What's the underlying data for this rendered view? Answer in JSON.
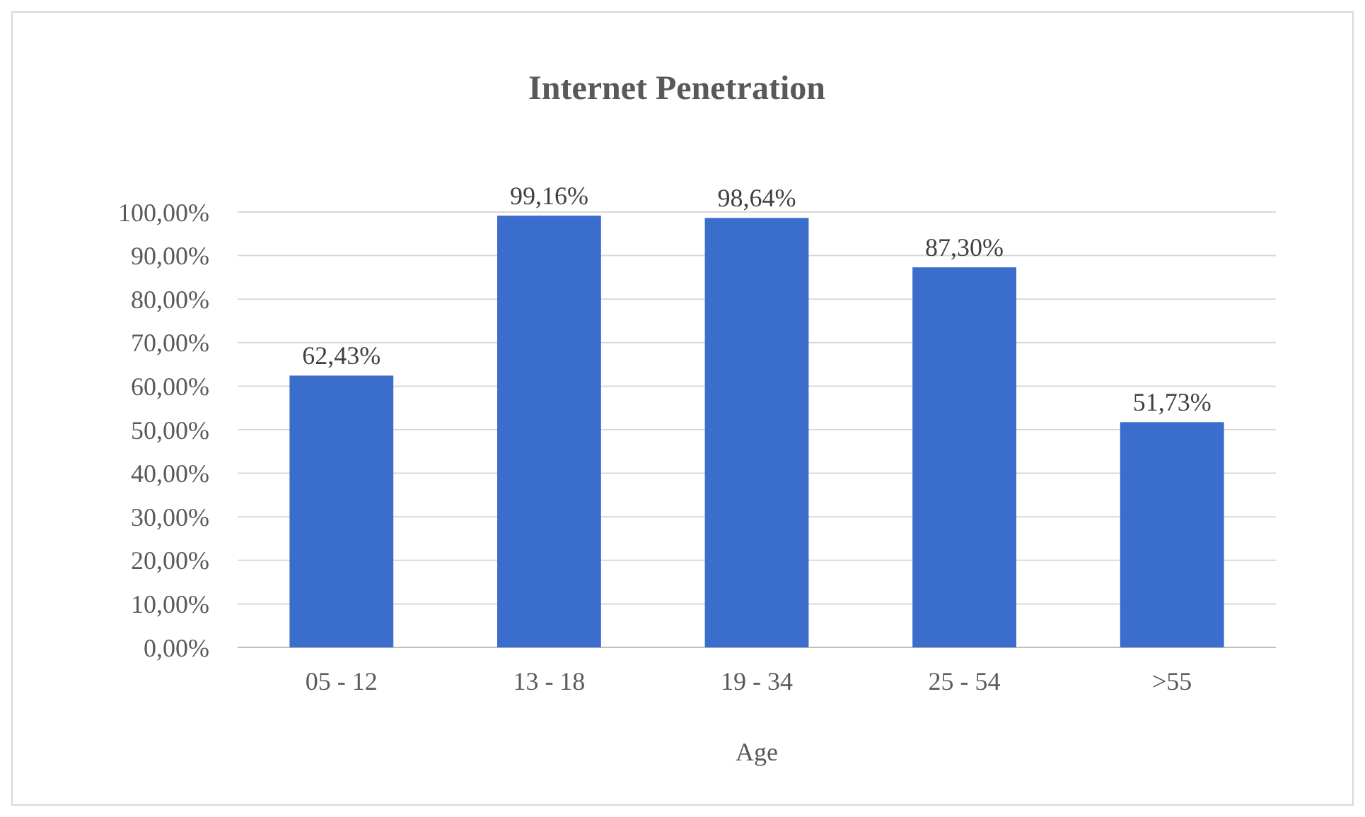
{
  "chart_data": {
    "type": "bar",
    "title": "Internet Penetration",
    "xlabel": "Age",
    "categories": [
      "05 - 12",
      "13 - 18",
      "19 - 34",
      "25 - 54",
      ">55"
    ],
    "values": [
      62.43,
      99.16,
      98.64,
      87.3,
      51.73
    ],
    "value_labels": [
      "62,43%",
      "99,16%",
      "98,64%",
      "87,30%",
      "51,73%"
    ],
    "color": "#3b6dcc",
    "ylim": [
      0,
      100
    ],
    "yticks": [
      {
        "value": 0,
        "label": "0,00%"
      },
      {
        "value": 10,
        "label": "10,00%"
      },
      {
        "value": 20,
        "label": "20,00%"
      },
      {
        "value": 30,
        "label": "30,00%"
      },
      {
        "value": 40,
        "label": "40,00%"
      },
      {
        "value": 50,
        "label": "50,00%"
      },
      {
        "value": 60,
        "label": "60,00%"
      },
      {
        "value": 70,
        "label": "70,00%"
      },
      {
        "value": 80,
        "label": "80,00%"
      },
      {
        "value": 90,
        "label": "90,00%"
      },
      {
        "value": 100,
        "label": "100,00%"
      }
    ],
    "grid": "y"
  }
}
